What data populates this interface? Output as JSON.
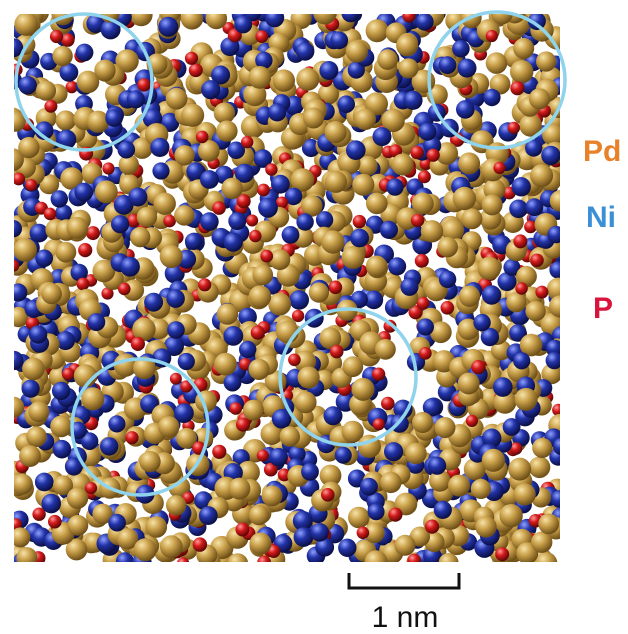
{
  "legend": [
    {
      "label": "Pd",
      "color": "#e8822a"
    },
    {
      "label": "Ni",
      "color": "#3b8fd6"
    },
    {
      "label": "P",
      "color": "#d8143c"
    }
  ],
  "scale_bar": {
    "label": "1 nm"
  },
  "atom_colors": {
    "pd": "#c9a04a",
    "ni": "#2233a8",
    "p": "#d41a1a"
  },
  "highlight_circle_color": "#8fd3ec"
}
